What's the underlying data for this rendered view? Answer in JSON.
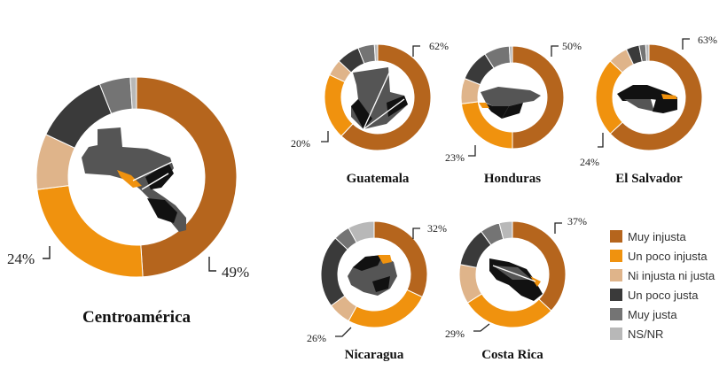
{
  "colors": {
    "muy_injusta": "#b5651d",
    "un_poco_injusta": "#f0920e",
    "ni_injusta_ni_justa": "#dfb48a",
    "un_poco_justa": "#3a3a3a",
    "muy_justa": "#747474",
    "ns_nr": "#b8b8b8",
    "map": "#555555",
    "map_dark": "#111111"
  },
  "legend": {
    "items": [
      {
        "label": "Muy injusta",
        "color": "#b5651d"
      },
      {
        "label": "Un poco injusta",
        "color": "#f0920e"
      },
      {
        "label": "Ni injusta ni justa",
        "color": "#dfb48a"
      },
      {
        "label": "Un poco justa",
        "color": "#3a3a3a"
      },
      {
        "label": "Muy justa",
        "color": "#747474"
      },
      {
        "label": "NS/NR",
        "color": "#b8b8b8"
      }
    ]
  },
  "chart_data": [
    {
      "type": "pie",
      "title": "Centroamérica",
      "categories": [
        "Muy injusta",
        "Un poco injusta",
        "Ni injusta ni justa",
        "Un poco justa",
        "Muy justa",
        "NS/NR"
      ],
      "values": [
        49,
        24,
        9,
        12,
        5,
        1
      ],
      "labels": {
        "muy_injusta": "49%",
        "un_poco_injusta": "24%"
      }
    },
    {
      "type": "pie",
      "title": "Guatemala",
      "categories": [
        "Muy injusta",
        "Un poco injusta",
        "Ni injusta ni justa",
        "Un poco justa",
        "Muy justa",
        "NS/NR"
      ],
      "values": [
        62,
        20,
        5,
        7,
        5,
        1
      ],
      "labels": {
        "muy_injusta": "62%",
        "un_poco_injusta": "20%"
      }
    },
    {
      "type": "pie",
      "title": "Honduras",
      "categories": [
        "Muy injusta",
        "Un poco injusta",
        "Ni injusta ni justa",
        "Un poco justa",
        "Muy justa",
        "NS/NR"
      ],
      "values": [
        50,
        23,
        8,
        10,
        8,
        1
      ],
      "labels": {
        "muy_injusta": "50%",
        "un_poco_injusta": "23%"
      }
    },
    {
      "type": "pie",
      "title": "El Salvador",
      "categories": [
        "Muy injusta",
        "Un poco injusta",
        "Ni injusta ni justa",
        "Un poco justa",
        "Muy justa",
        "NS/NR"
      ],
      "values": [
        63,
        24,
        6,
        4,
        2,
        1
      ],
      "labels": {
        "muy_injusta": "63%",
        "un_poco_injusta": "24%"
      }
    },
    {
      "type": "pie",
      "title": "Nicaragua",
      "categories": [
        "Muy injusta",
        "Un poco injusta",
        "Ni injusta ni justa",
        "Un poco justa",
        "Muy justa",
        "NS/NR"
      ],
      "values": [
        32,
        26,
        7,
        22,
        5,
        8
      ],
      "labels": {
        "muy_injusta": "32%",
        "un_poco_injusta": "26%"
      }
    },
    {
      "type": "pie",
      "title": "Costa Rica",
      "categories": [
        "Muy injusta",
        "Un poco injusta",
        "Ni injusta ni justa",
        "Un poco justa",
        "Muy justa",
        "NS/NR"
      ],
      "values": [
        37,
        29,
        12,
        12,
        6,
        4
      ],
      "labels": {
        "muy_injusta": "37%",
        "un_poco_injusta": "29%"
      }
    }
  ]
}
